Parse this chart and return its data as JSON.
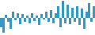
{
  "values": [
    -18,
    -28,
    5,
    -8,
    -20,
    10,
    -5,
    8,
    -12,
    6,
    -8,
    4,
    -10,
    8,
    -6,
    4,
    -14,
    6,
    -4,
    10,
    -8,
    14,
    -10,
    8,
    20,
    -18,
    30,
    -10,
    24,
    -12,
    18,
    -8,
    20,
    -14,
    16,
    -20,
    10,
    26,
    -8,
    20
  ],
  "bar_color": "#3399cc",
  "background_color": "#ffffff",
  "ylim": [
    -32,
    32
  ]
}
